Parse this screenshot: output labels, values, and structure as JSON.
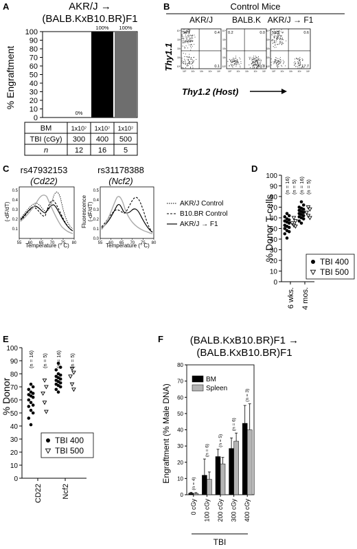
{
  "panels": {
    "A": {
      "letter": "A",
      "title_line1": "AKR/J →",
      "title_line2": "(BALB.KxB10.BR)F1",
      "ylabel": "% Engraftment",
      "yticks": [
        "0",
        "10",
        "20",
        "30",
        "40",
        "50",
        "60",
        "70",
        "80",
        "90",
        "100"
      ],
      "bar_labels": [
        "0%",
        "100%",
        "100%"
      ],
      "table": {
        "rows": [
          {
            "label": "BM",
            "cells": [
              "1x10⁷",
              "1x10⁷",
              "1x10⁷"
            ]
          },
          {
            "label": "TBI (cGy)",
            "cells": [
              "300",
              "400",
              "500"
            ]
          },
          {
            "label": "n",
            "cells": [
              "12",
              "16",
              "5"
            ]
          }
        ]
      }
    },
    "B": {
      "letter": "B",
      "title": "Control Mice",
      "ylabel": "Thy1.1",
      "xlabel": "Thy1.2 (Host)",
      "plots": [
        {
          "title": "AKR/J",
          "q_ul": "54.1",
          "q_ur": "0.4",
          "q_lr": "0.1"
        },
        {
          "title": "BALB.K",
          "q_ul": "0.2",
          "q_ur": "0.0",
          "q_lr": "81.8"
        },
        {
          "title": "AKR/J → F1",
          "q_ul": "58.5",
          "q_ur": "0.6",
          "q_lr": "17.7"
        }
      ],
      "tick_labels": [
        "10⁴",
        "10³",
        "10²",
        "10¹",
        "10⁰"
      ]
    },
    "C": {
      "letter": "C",
      "snp1_id": "rs47932153",
      "snp1_gene": "(Cd22)",
      "snp2_id": "rs31178388",
      "snp2_gene": "(Ncf2)",
      "ylabel1": "(-dF/dT)",
      "ylabel2a": "Fluorescence",
      "ylabel2b": "(-dF/dT)",
      "xlabel": "Temperature (° C)",
      "xticks": [
        "55",
        "60",
        "65",
        "70",
        "75",
        "80"
      ],
      "yticks1": [
        "0.1",
        "0.2",
        "0.3",
        "0.4",
        "0.5"
      ],
      "yticks2": [
        "0.0",
        "0.1",
        "0.2",
        "0.3",
        "0.4",
        "0.5"
      ],
      "legend": [
        "AKR/J Control",
        "B10.BR Control",
        "AKR/J → F1"
      ]
    },
    "D": {
      "letter": "D",
      "ylabel": "% Donor T-cells",
      "yticks": [
        "0",
        "10",
        "20",
        "30",
        "40",
        "50",
        "60",
        "70",
        "80",
        "90",
        "100"
      ],
      "groups": [
        "6 wks.",
        "4 mos."
      ],
      "n_labels": [
        "(n = 16)",
        "(n = 5)",
        "(n = 16)",
        "(n = 5)"
      ],
      "legend": [
        "TBI 400",
        "TBI 500"
      ]
    },
    "E": {
      "letter": "E",
      "ylabel": "% Donor",
      "yticks": [
        "0",
        "10",
        "20",
        "30",
        "40",
        "50",
        "60",
        "70",
        "80",
        "90",
        "100"
      ],
      "groups": [
        "CD22",
        "Ncf2"
      ],
      "n_labels": [
        "(n = 16)",
        "(n = 5)",
        "(n = 16)",
        "(n = 5)"
      ],
      "legend": [
        "TBI 400",
        "TBI 500"
      ]
    },
    "F": {
      "letter": "F",
      "title_line1": "(BALB.KxB10.BR)F1 →",
      "title_line2": "(BALB.KxB10.BR)F1",
      "ylabel": "Engraftment (% Male DNA)",
      "yticks": [
        "0",
        "10",
        "20",
        "30",
        "40",
        "50",
        "60",
        "70",
        "80"
      ],
      "xlabel": "TBI",
      "n_labels": [
        "(n = 4)",
        "(n = 6)",
        "(n = 5)",
        "(n = 6)",
        "(n = 3)"
      ]
    }
  },
  "chart_data": [
    {
      "panel": "A",
      "type": "bar",
      "categories": [
        "300",
        "400",
        "500"
      ],
      "values": [
        0,
        100,
        100
      ],
      "ylabel": "% Engraftment",
      "ylim": [
        0,
        100
      ],
      "colors": [
        "#000000",
        "#000000",
        "#6e6e6e"
      ]
    },
    {
      "panel": "D",
      "type": "scatter",
      "ylabel": "% Donor T-cells",
      "ylim": [
        0,
        100
      ],
      "categories": [
        "6 wks.",
        "4 mos."
      ],
      "series": [
        {
          "name": "TBI 400",
          "marker": "filled-circle",
          "points": [
            [
              "6 wks.",
              64
            ],
            [
              "6 wks.",
              62
            ],
            [
              "6 wks.",
              61
            ],
            [
              "6 wks.",
              59
            ],
            [
              "6 wks.",
              58
            ],
            [
              "6 wks.",
              57
            ],
            [
              "6 wks.",
              56
            ],
            [
              "6 wks.",
              55
            ],
            [
              "6 wks.",
              53
            ],
            [
              "6 wks.",
              52
            ],
            [
              "6 wks.",
              51
            ],
            [
              "6 wks.",
              50
            ],
            [
              "6 wks.",
              48
            ],
            [
              "6 wks.",
              47
            ],
            [
              "6 wks.",
              45
            ],
            [
              "6 wks.",
              41
            ],
            [
              "4 mos.",
              75
            ],
            [
              "4 mos.",
              72
            ],
            [
              "4 mos.",
              70
            ],
            [
              "4 mos.",
              69
            ],
            [
              "4 mos.",
              68
            ],
            [
              "4 mos.",
              67
            ],
            [
              "4 mos.",
              66
            ],
            [
              "4 mos.",
              65
            ],
            [
              "4 mos.",
              64
            ],
            [
              "4 mos.",
              63
            ],
            [
              "4 mos.",
              62
            ],
            [
              "4 mos.",
              61
            ],
            [
              "4 mos.",
              60
            ],
            [
              "4 mos.",
              59
            ],
            [
              "4 mos.",
              57
            ],
            [
              "4 mos.",
              55
            ]
          ]
        },
        {
          "name": "TBI 500",
          "marker": "open-triangle",
          "points": [
            [
              "6 wks.",
              60
            ],
            [
              "6 wks.",
              57
            ],
            [
              "6 wks.",
              55
            ],
            [
              "6 wks.",
              53
            ],
            [
              "6 wks.",
              52
            ],
            [
              "4 mos.",
              70
            ],
            [
              "4 mos.",
              68
            ],
            [
              "4 mos.",
              65
            ],
            [
              "4 mos.",
              62
            ],
            [
              "4 mos.",
              60
            ]
          ]
        }
      ]
    },
    {
      "panel": "E",
      "type": "scatter",
      "ylabel": "% Donor",
      "ylim": [
        0,
        100
      ],
      "categories": [
        "CD22",
        "Ncf2"
      ],
      "series": [
        {
          "name": "TBI 400",
          "marker": "filled-circle",
          "points": [
            [
              "CD22",
              72
            ],
            [
              "CD22",
              70
            ],
            [
              "CD22",
              68
            ],
            [
              "CD22",
              66
            ],
            [
              "CD22",
              65
            ],
            [
              "CD22",
              64
            ],
            [
              "CD22",
              63
            ],
            [
              "CD22",
              62
            ],
            [
              "CD22",
              60
            ],
            [
              "CD22",
              58
            ],
            [
              "CD22",
              56
            ],
            [
              "CD22",
              55
            ],
            [
              "CD22",
              52
            ],
            [
              "CD22",
              50
            ],
            [
              "CD22",
              46
            ],
            [
              "CD22",
              41
            ],
            [
              "Ncf2",
              88
            ],
            [
              "Ncf2",
              85
            ],
            [
              "Ncf2",
              83
            ],
            [
              "Ncf2",
              80
            ],
            [
              "Ncf2",
              79
            ],
            [
              "Ncf2",
              78
            ],
            [
              "Ncf2",
              77
            ],
            [
              "Ncf2",
              76
            ],
            [
              "Ncf2",
              75
            ],
            [
              "Ncf2",
              74
            ],
            [
              "Ncf2",
              73
            ],
            [
              "Ncf2",
              72
            ],
            [
              "Ncf2",
              71
            ],
            [
              "Ncf2",
              70
            ],
            [
              "Ncf2",
              68
            ],
            [
              "Ncf2",
              66
            ]
          ]
        },
        {
          "name": "TBI 500",
          "marker": "open-triangle",
          "points": [
            [
              "CD22",
              75
            ],
            [
              "CD22",
              70
            ],
            [
              "CD22",
              65
            ],
            [
              "CD22",
              58
            ],
            [
              "CD22",
              51
            ],
            [
              "Ncf2",
              84
            ],
            [
              "Ncf2",
              81
            ],
            [
              "Ncf2",
              78
            ],
            [
              "Ncf2",
              72
            ],
            [
              "Ncf2",
              68
            ]
          ]
        }
      ]
    },
    {
      "panel": "F",
      "type": "bar",
      "categories": [
        "0 cGy",
        "100 cGy",
        "200 cGy",
        "300 cGy",
        "400 cGy"
      ],
      "ylabel": "Engraftment (% Male DNA)",
      "xlabel": "TBI",
      "ylim": [
        0,
        80
      ],
      "legend_position": "top-left",
      "series": [
        {
          "name": "BM",
          "color": "#000000",
          "values": [
            1,
            12,
            23.5,
            28.5,
            44
          ],
          "errors": [
            0.5,
            10,
            4.5,
            6.5,
            11
          ]
        },
        {
          "name": "Spleen",
          "color": "#b4b4b4",
          "values": [
            0.8,
            9.5,
            19,
            33,
            40
          ],
          "errors": [
            0.5,
            4.5,
            4,
            5,
            16
          ]
        }
      ]
    }
  ]
}
